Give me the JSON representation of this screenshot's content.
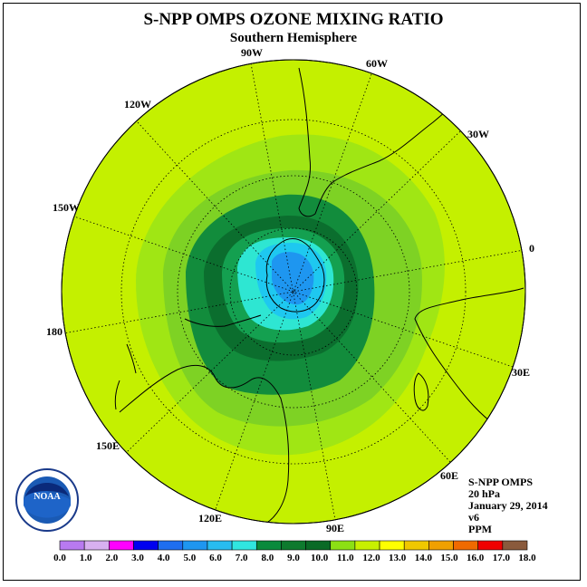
{
  "title": "S-NPP OMPS OZONE MIXING RATIO",
  "subtitle": "Southern Hemisphere",
  "longitude_labels": {
    "w90": "90W",
    "w60": "60W",
    "w30": "30W",
    "e0": "0",
    "e30": "30E",
    "e60": "60E",
    "e90": "90E",
    "e120": "120E",
    "e150": "150E",
    "e180": "180",
    "w150": "150W",
    "w120": "120W"
  },
  "info": {
    "instrument": "S-NPP OMPS",
    "level": "20 hPa",
    "date": "January 29, 2014",
    "version": "v6",
    "units": "PPM"
  },
  "logo": {
    "text": "NOAA"
  },
  "colorbar": {
    "ticks": [
      "0.0",
      "1.0",
      "2.0",
      "3.0",
      "4.0",
      "5.0",
      "6.0",
      "7.0",
      "8.0",
      "9.0",
      "10.0",
      "11.0",
      "12.0",
      "13.0",
      "14.0",
      "15.0",
      "16.0",
      "17.0",
      "18.0"
    ],
    "colors": [
      "#b87af0",
      "#d8b0f0",
      "#ff00ff",
      "#0000f0",
      "#1e6ef0",
      "#1e96f0",
      "#28bcf0",
      "#30e6e0",
      "#0a8a3c",
      "#0e7a2e",
      "#0a6a26",
      "#8ce014",
      "#c8f000",
      "#ffff00",
      "#f0c800",
      "#f0a000",
      "#f06a00",
      "#f00000",
      "#8a5a3c"
    ]
  },
  "map_colors": {
    "background": "#c4f000",
    "contour_11": "#a0e614",
    "contour_10": "#7ed224",
    "contour_9": "#128c3c",
    "contour_8": "#0b6e2e",
    "contour_7": "#14a050",
    "contour_6": "#2ee6d2",
    "contour_5": "#1ec8f0",
    "contour_4": "#1e96f0"
  }
}
